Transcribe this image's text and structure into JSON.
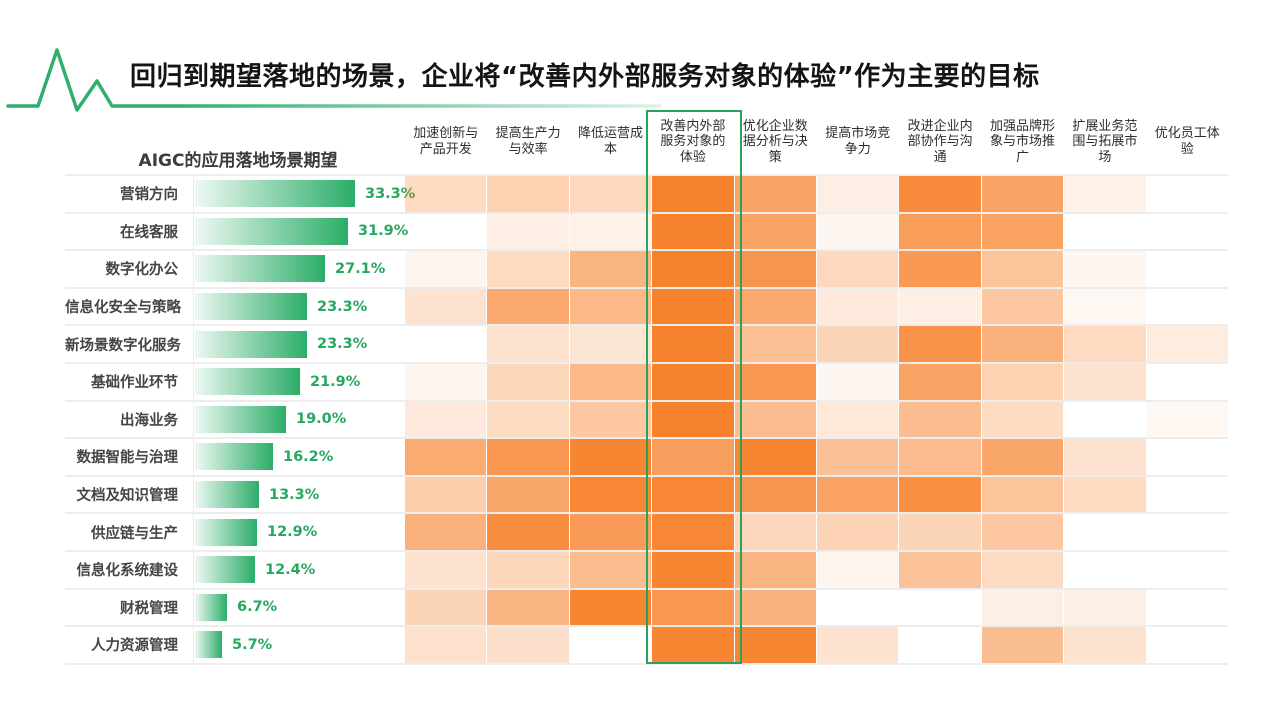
{
  "title": "回归到期望落地的场景，企业将“改善内外部服务对象的体验”作为主要的目标",
  "colors": {
    "accent_green": "#2BAD68",
    "value_label_green": "#27A85F",
    "heatmap_base_orange": "#F77E26",
    "highlight_border_green": "#27A35C",
    "row_label_gray": "#454545",
    "separator_gray": "#ededed"
  },
  "logo": {
    "icon_name": "green-heartbeat-wave-icon"
  },
  "chart_data": {
    "type": "heatmap",
    "title": "回归到期望落地的场景，企业将“改善内外部服务对象的体验”作为主要的目标",
    "left_section_title": "AIGC的应用落地场景期望",
    "rows": [
      "营销方向",
      "在线客服",
      "数字化办公",
      "信息化安全与策略",
      "新场景数字化服务",
      "基础作业环节",
      "出海业务",
      "数据智能与治理",
      "文档及知识管理",
      "供应链与生产",
      "信息化系统建设",
      "财税管理",
      "人力资源管理"
    ],
    "row_values_percent": [
      33.3,
      31.9,
      27.1,
      23.3,
      23.3,
      21.9,
      19.0,
      16.2,
      13.3,
      12.9,
      12.4,
      6.7,
      5.7
    ],
    "row_value_labels": [
      "33.3%",
      "31.9%",
      "27.1%",
      "23.3%",
      "23.3%",
      "21.9%",
      "19.0%",
      "16.2%",
      "13.3%",
      "12.9%",
      "12.4%",
      "6.7%",
      "5.7%"
    ],
    "bar_color_gradient": [
      "rgba(43,174,107,0.08)",
      "#2BAD68"
    ],
    "columns": [
      "加速创新与产品开发",
      "提高生产力与效率",
      "降低运营成本",
      "改善内外部服务对象的体验",
      "优化企业数据分析与决策",
      "提高市场竞争力",
      "改进企业内部协作与沟通",
      "加强品牌形象与市场推广",
      "扩展业务范围与拓展市场",
      "优化员工体验"
    ],
    "highlighted_column_index": 3,
    "highlighted_column_label": "改善内外部服务对象的体验",
    "intensity_scale": "0 = white, 1 = full orange #F77E26 (relative share intensity read from cell shading)",
    "cell_intensity": [
      [
        0.29,
        0.35,
        0.3,
        0.97,
        0.71,
        0.13,
        0.9,
        0.71,
        0.11,
        0.0
      ],
      [
        0.0,
        0.13,
        0.1,
        0.97,
        0.71,
        0.07,
        0.76,
        0.72,
        0.0,
        0.0
      ],
      [
        0.08,
        0.29,
        0.58,
        0.97,
        0.82,
        0.3,
        0.79,
        0.46,
        0.07,
        0.0
      ],
      [
        0.22,
        0.67,
        0.54,
        0.97,
        0.67,
        0.16,
        0.13,
        0.43,
        0.06,
        0.0
      ],
      [
        0.0,
        0.22,
        0.2,
        0.97,
        0.49,
        0.33,
        0.84,
        0.6,
        0.29,
        0.15
      ],
      [
        0.08,
        0.32,
        0.55,
        0.97,
        0.81,
        0.07,
        0.71,
        0.35,
        0.22,
        0.0
      ],
      [
        0.16,
        0.27,
        0.43,
        0.97,
        0.51,
        0.18,
        0.51,
        0.27,
        0.0,
        0.06
      ],
      [
        0.65,
        0.81,
        0.94,
        0.74,
        0.94,
        0.49,
        0.53,
        0.68,
        0.22,
        0.0
      ],
      [
        0.38,
        0.69,
        0.93,
        0.93,
        0.82,
        0.72,
        0.87,
        0.46,
        0.29,
        0.0
      ],
      [
        0.61,
        0.88,
        0.78,
        0.93,
        0.31,
        0.34,
        0.33,
        0.43,
        0.0,
        0.0
      ],
      [
        0.22,
        0.32,
        0.51,
        0.95,
        0.58,
        0.08,
        0.47,
        0.28,
        0.0,
        0.0
      ],
      [
        0.33,
        0.58,
        0.94,
        0.81,
        0.6,
        0.0,
        0.0,
        0.12,
        0.12,
        0.0
      ],
      [
        0.23,
        0.24,
        0.0,
        0.95,
        0.94,
        0.22,
        0.0,
        0.5,
        0.22,
        0.0
      ]
    ],
    "legend_position": "none",
    "grid": "horizontal row separators only"
  }
}
